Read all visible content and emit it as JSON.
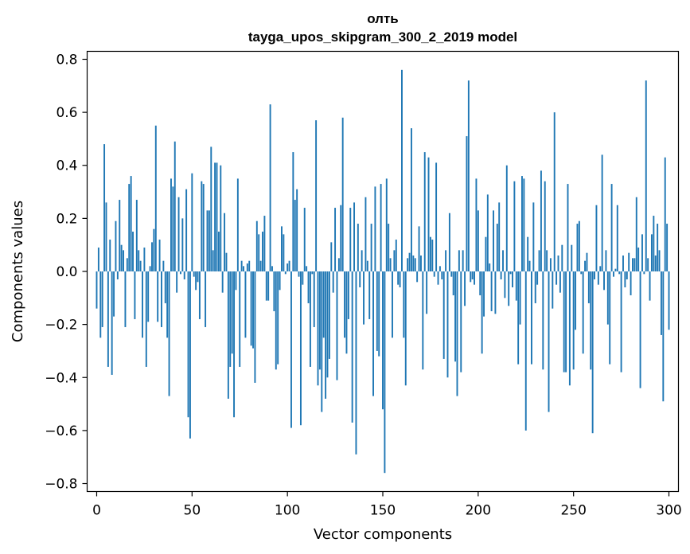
{
  "chart_data": {
    "type": "bar",
    "title_line1": "олть",
    "title_line2": "tayga_upos_skipgram_300_2_2019 model",
    "xlabel": "Vector components",
    "ylabel": "Components values",
    "xlim": [
      -5,
      305
    ],
    "ylim": [
      -0.83,
      0.83
    ],
    "xticks": [
      0,
      50,
      100,
      150,
      200,
      250,
      300
    ],
    "xtick_labels": [
      "0",
      "50",
      "100",
      "150",
      "200",
      "250",
      "300"
    ],
    "yticks": [
      -0.8,
      -0.6,
      -0.4,
      -0.2,
      0.0,
      0.2,
      0.4,
      0.6,
      0.8
    ],
    "ytick_labels": [
      "−0.8",
      "−0.6",
      "−0.4",
      "−0.2",
      "0.0",
      "0.2",
      "0.4",
      "0.6",
      "0.8"
    ],
    "bar_color": "#1f77b4",
    "values": [
      -0.14,
      0.09,
      -0.25,
      -0.21,
      0.48,
      0.26,
      -0.36,
      0.12,
      -0.39,
      -0.17,
      0.19,
      -0.03,
      0.27,
      0.1,
      0.08,
      -0.21,
      0.05,
      0.33,
      0.36,
      0.15,
      -0.18,
      0.27,
      0.08,
      0.04,
      -0.25,
      0.09,
      -0.36,
      -0.19,
      0.02,
      0.11,
      0.16,
      0.55,
      -0.19,
      0.12,
      -0.21,
      0.04,
      -0.12,
      -0.25,
      -0.47,
      0.35,
      0.32,
      0.49,
      -0.08,
      0.28,
      -0.01,
      0.2,
      -0.03,
      0.31,
      -0.55,
      -0.63,
      0.37,
      -0.02,
      -0.07,
      -0.04,
      -0.18,
      0.34,
      0.33,
      -0.21,
      0.23,
      0.23,
      0.47,
      0.08,
      0.41,
      0.41,
      0.15,
      0.4,
      -0.08,
      0.22,
      0.07,
      -0.48,
      -0.36,
      -0.31,
      -0.55,
      -0.07,
      0.35,
      -0.36,
      0.04,
      0.02,
      -0.25,
      0.03,
      0.04,
      -0.28,
      -0.29,
      -0.42,
      0.19,
      0.14,
      0.04,
      0.15,
      0.21,
      -0.11,
      -0.11,
      0.63,
      0.02,
      -0.15,
      -0.37,
      -0.35,
      -0.07,
      0.17,
      0.14,
      -0.01,
      0.03,
      0.04,
      -0.59,
      0.45,
      0.27,
      0.31,
      -0.02,
      -0.58,
      -0.05,
      0.24,
      0.02,
      -0.12,
      -0.36,
      -0.01,
      -0.21,
      0.57,
      -0.43,
      -0.37,
      -0.53,
      -0.25,
      -0.48,
      -0.4,
      -0.33,
      0.11,
      -0.08,
      0.24,
      -0.41,
      0.05,
      0.25,
      0.58,
      -0.25,
      -0.31,
      -0.18,
      0.24,
      -0.57,
      0.26,
      -0.69,
      0.18,
      -0.06,
      0.08,
      -0.2,
      0.28,
      0.04,
      -0.18,
      0.18,
      -0.47,
      0.32,
      -0.3,
      -0.32,
      0.33,
      -0.52,
      -0.76,
      0.35,
      0.18,
      0.05,
      -0.25,
      0.08,
      0.12,
      -0.05,
      -0.06,
      0.76,
      -0.25,
      -0.43,
      0.05,
      0.07,
      0.54,
      0.06,
      0.05,
      -0.04,
      0.17,
      0.06,
      -0.37,
      0.45,
      -0.16,
      0.43,
      0.13,
      0.12,
      -0.02,
      0.41,
      -0.05,
      0.02,
      -0.03,
      -0.33,
      0.08,
      -0.4,
      0.22,
      -0.02,
      -0.09,
      -0.34,
      -0.47,
      0.08,
      -0.38,
      0.08,
      -0.13,
      0.51,
      0.72,
      -0.04,
      -0.03,
      -0.05,
      0.35,
      0.23,
      -0.09,
      -0.31,
      -0.17,
      0.13,
      0.29,
      0.03,
      -0.15,
      0.23,
      -0.16,
      0.18,
      0.26,
      -0.03,
      0.08,
      -0.1,
      0.4,
      -0.13,
      -0.01,
      -0.06,
      0.34,
      -0.11,
      -0.35,
      -0.2,
      0.36,
      0.35,
      -0.6,
      0.13,
      0.04,
      -0.35,
      0.26,
      -0.12,
      -0.05,
      0.08,
      0.38,
      -0.37,
      0.34,
      0.08,
      -0.53,
      0.05,
      -0.14,
      0.6,
      -0.05,
      0.06,
      -0.08,
      0.1,
      -0.38,
      -0.38,
      0.33,
      -0.43,
      0.1,
      -0.37,
      -0.22,
      0.18,
      0.19,
      -0.01,
      -0.31,
      0.04,
      0.07,
      -0.12,
      -0.37,
      -0.61,
      -0.03,
      0.25,
      -0.05,
      0.02,
      0.44,
      -0.07,
      0.08,
      -0.2,
      -0.35,
      0.33,
      -0.02,
      0.01,
      0.25,
      -0.01,
      -0.38,
      0.06,
      -0.06,
      -0.03,
      0.07,
      -0.09,
      0.05,
      0.05,
      0.28,
      0.09,
      -0.44,
      0.14,
      -0.01,
      0.72,
      0.05,
      -0.11,
      0.14,
      0.21,
      0.06,
      0.18,
      0.08,
      -0.24,
      -0.49,
      0.43,
      0.18,
      -0.22
    ]
  }
}
